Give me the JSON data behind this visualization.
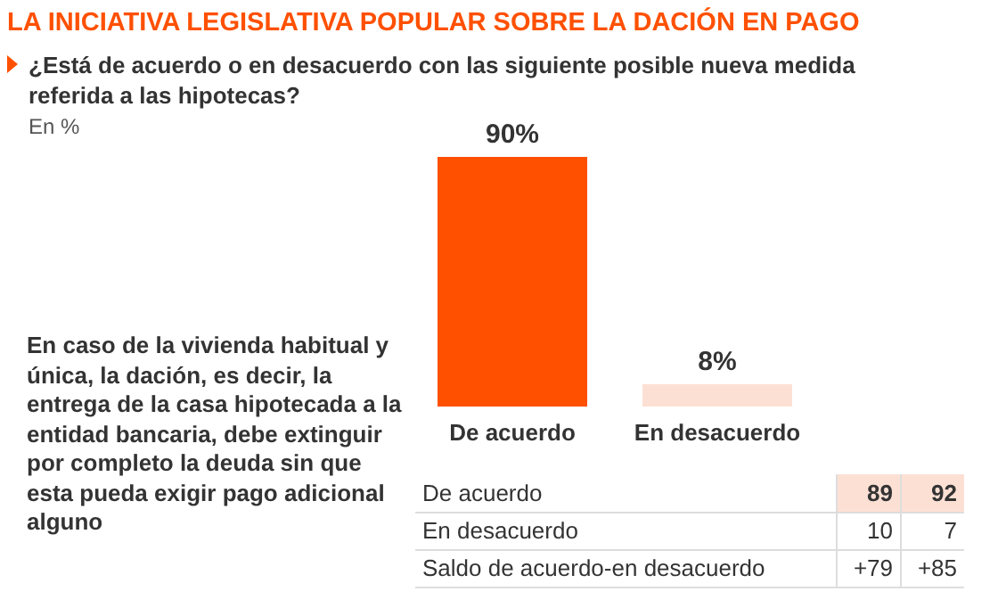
{
  "chart_data": {
    "type": "bar",
    "title": "LA INICIATIVA LEGISLATIVA POPULAR SOBRE LA DACIÓN EN PAGO",
    "subtitle": "¿Está de acuerdo o en desacuerdo con las siguiente posible nueva medida referida a las hipotecas?",
    "categories": [
      "De acuerdo",
      "En desacuerdo"
    ],
    "values": [
      90,
      8
    ],
    "colors": [
      "#ff5000",
      "#fde0d4"
    ],
    "value_labels": [
      "90%",
      "8%"
    ],
    "annotations": [
      "En %",
      "En caso de la vivienda habitual y única, la dación, es decir, la entrega de la casa hipotecada a la entidad bancaria, debe extinguir por completo la deuda sin que esta pueda exigir pago adicional alguno",
      "De acuerdo",
      "89",
      "92",
      "En desacuerdo",
      "10",
      "7",
      "Saldo de acuerdo-en desacuerdo",
      "+79",
      "+85"
    ]
  }
}
